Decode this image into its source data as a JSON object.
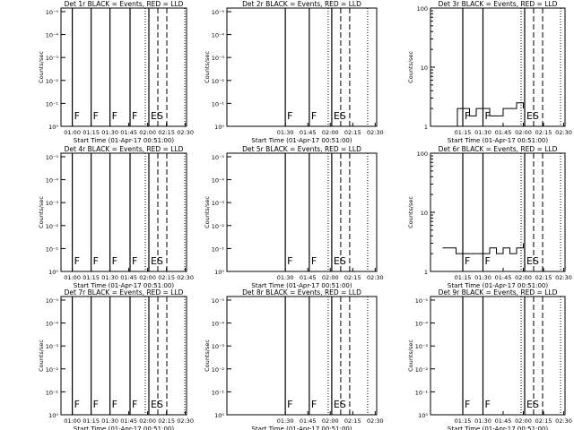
{
  "figure": {
    "xlabel": "Start Time (01-Apr-17 00:51:00)",
    "ylabel": "Counts/sec"
  },
  "chart_data": [
    {
      "type": "line",
      "title": "Det 1r BLACK = Events, RED = LLD",
      "xlabel": "Start Time (01-Apr-17 00:51:00)",
      "ylabel": "Counts/sec",
      "x_ticks": [
        "01:00",
        "01:15",
        "01:30",
        "01:45",
        "02:00",
        "02:15",
        "02:30"
      ],
      "y_scale": "log",
      "y_ticks": [
        "10⁰",
        "10⁻¹",
        "10⁻²",
        "10⁻³",
        "10⁻⁴",
        "10⁻⁵"
      ],
      "markers": [
        {
          "label": "F",
          "x": "01:00"
        },
        {
          "label": "F",
          "x": "01:15"
        },
        {
          "label": "F",
          "x": "01:30"
        },
        {
          "label": "F",
          "x": "01:46"
        },
        {
          "label": "ES",
          "x": "02:01"
        }
      ],
      "series": [],
      "xlim": [
        "00:51",
        "02:31"
      ]
    },
    {
      "type": "line",
      "title": "Det 2r BLACK = Events, RED = LLD",
      "xlabel": "Start Time (01-Apr-17 00:51:00)",
      "ylabel": "Counts/sec",
      "x_ticks": [
        "01:30",
        "01:45",
        "02:00",
        "02:15",
        "02:30"
      ],
      "y_scale": "log",
      "y_ticks": [
        "10⁰",
        "10⁻¹",
        "10⁻²",
        "10⁻³",
        "10⁻⁴",
        "10⁻⁵"
      ],
      "markers": [
        {
          "label": "F",
          "x": "01:30"
        },
        {
          "label": "F",
          "x": "01:46"
        },
        {
          "label": "ES",
          "x": "02:01"
        }
      ],
      "series": []
    },
    {
      "type": "line",
      "title": "Det 3r BLACK = Events, RED = LLD",
      "xlabel": "Start Time (01-Apr-17 00:51:00)",
      "ylabel": "Counts/sec",
      "x_ticks": [
        "01:15",
        "01:30",
        "01:45",
        "02:00",
        "02:15",
        "02:30"
      ],
      "y_scale": "log",
      "y_ticks": [
        "1",
        "10",
        "100"
      ],
      "ylim": [
        1,
        100
      ],
      "markers": [
        {
          "label": "F",
          "x": "01:15"
        },
        {
          "label": "F",
          "x": "01:30"
        },
        {
          "label": "ES",
          "x": "02:01"
        }
      ],
      "series": [
        {
          "values_note": "",
          "x": [
            "01:07",
            "01:11",
            "01:15",
            "01:20",
            "01:25",
            "01:30",
            "01:35",
            "01:40",
            "01:45",
            "01:50",
            "01:55",
            "02:00"
          ],
          "y": [
            1,
            2,
            2,
            1.5,
            2,
            2,
            1.5,
            1.5,
            2,
            2,
            2.5,
            2
          ]
        }
      ]
    },
    {
      "type": "line",
      "title": "Det 4r BLACK = Events, RED = LLD",
      "xlabel": "Start Time (01-Apr-17 00:51:00)",
      "ylabel": "Counts/sec",
      "x_ticks": [
        "01:00",
        "01:15",
        "01:30",
        "01:45",
        "02:00",
        "02:15",
        "02:30"
      ],
      "y_scale": "log",
      "y_ticks": [
        "10⁰",
        "10⁻¹",
        "10⁻²",
        "10⁻³",
        "10⁻⁴",
        "10⁻⁵"
      ],
      "markers": [
        {
          "label": "F",
          "x": "01:00"
        },
        {
          "label": "F",
          "x": "01:15"
        },
        {
          "label": "F",
          "x": "01:30"
        },
        {
          "label": "F",
          "x": "01:46"
        },
        {
          "label": "ES",
          "x": "02:01"
        }
      ],
      "series": []
    },
    {
      "type": "line",
      "title": "Det 5r BLACK = Events, RED = LLD",
      "xlabel": "Start Time (01-Apr-17 00:51:00)",
      "ylabel": "Counts/sec",
      "x_ticks": [
        "01:30",
        "01:45",
        "02:00",
        "02:15",
        "02:30"
      ],
      "y_scale": "log",
      "y_ticks": [
        "10⁰",
        "10⁻¹",
        "10⁻²",
        "10⁻³",
        "10⁻⁴",
        "10⁻⁵"
      ],
      "markers": [
        {
          "label": "F",
          "x": "01:30"
        },
        {
          "label": "F",
          "x": "01:46"
        },
        {
          "label": "ES",
          "x": "02:01"
        }
      ],
      "series": []
    },
    {
      "type": "line",
      "title": "Det 6r BLACK = Events, RED = LLD",
      "xlabel": "Start Time (01-Apr-17 00:51:00)",
      "ylabel": "Counts/sec",
      "x_ticks": [
        "01:15",
        "01:30",
        "01:45",
        "02:00",
        "02:15",
        "02:30"
      ],
      "y_scale": "log",
      "y_ticks": [
        "1",
        "10",
        "100"
      ],
      "ylim": [
        1,
        100
      ],
      "markers": [
        {
          "label": "F",
          "x": "01:15"
        },
        {
          "label": "F",
          "x": "01:30"
        },
        {
          "label": "ES",
          "x": "02:01"
        }
      ],
      "series": [
        {
          "x": [
            "01:00",
            "01:05",
            "01:10",
            "01:15",
            "01:20",
            "01:25",
            "01:30",
            "01:35",
            "01:40",
            "01:45",
            "01:50",
            "01:55",
            "02:00"
          ],
          "y": [
            2.5,
            2.5,
            2,
            2,
            2,
            2,
            2,
            2.5,
            2,
            2.5,
            2,
            2.5,
            3
          ]
        }
      ]
    },
    {
      "type": "line",
      "title": "Det 7r BLACK = Events, RED = LLD",
      "xlabel": "Start Time (01-Apr-17 00:51:00)",
      "ylabel": "Counts/sec",
      "x_ticks": [
        "01:00",
        "01:15",
        "01:30",
        "01:45",
        "02:00",
        "02:15",
        "02:30"
      ],
      "y_scale": "log",
      "y_ticks": [
        "10⁰",
        "10⁻¹",
        "10⁻²",
        "10⁻³",
        "10⁻⁴",
        "10⁻⁵"
      ],
      "markers": [
        {
          "label": "F",
          "x": "01:00"
        },
        {
          "label": "F",
          "x": "01:15"
        },
        {
          "label": "F",
          "x": "01:30"
        },
        {
          "label": "F",
          "x": "01:46"
        },
        {
          "label": "ES",
          "x": "02:01"
        }
      ],
      "series": []
    },
    {
      "type": "line",
      "title": "Det 8r BLACK = Events, RED = LLD",
      "xlabel": "Start Time (01-Apr-17 00:51:00)",
      "ylabel": "Counts/sec",
      "x_ticks": [
        "01:30",
        "01:45",
        "02:00",
        "02:15",
        "02:30"
      ],
      "y_scale": "log",
      "y_ticks": [
        "10⁰",
        "10⁻¹",
        "10⁻²",
        "10⁻³",
        "10⁻⁴",
        "10⁻⁵"
      ],
      "markers": [
        {
          "label": "F",
          "x": "01:30"
        },
        {
          "label": "F",
          "x": "01:46"
        },
        {
          "label": "ES",
          "x": "02:01"
        }
      ],
      "series": []
    },
    {
      "type": "line",
      "title": "Det 9r BLACK = Events, RED = LLD",
      "xlabel": "Start Time (01-Apr-17 00:51:00)",
      "ylabel": "Counts/sec",
      "x_ticks": [
        "01:15",
        "01:30",
        "01:45",
        "02:00",
        "02:15",
        "02:30"
      ],
      "y_scale": "log",
      "y_ticks": [
        "10⁰",
        "10⁻¹",
        "10⁻²",
        "10⁻³",
        "10⁻⁴",
        "10⁻⁵"
      ],
      "markers": [
        {
          "label": "F",
          "x": "01:15"
        },
        {
          "label": "F",
          "x": "01:30"
        },
        {
          "label": "ES",
          "x": "02:01"
        }
      ],
      "series": []
    }
  ]
}
